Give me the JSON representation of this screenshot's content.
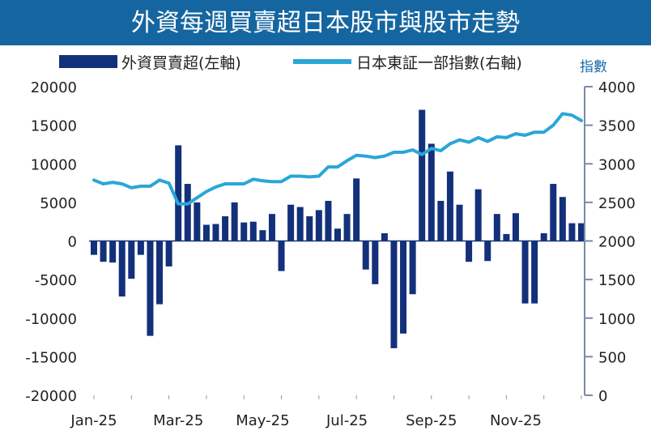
{
  "colors": {
    "title_bg": "#1566a0",
    "title_text": "#ffffff",
    "bar": "#13307a",
    "line": "#2aa6d8",
    "axis_text": "#222222",
    "right_axis_text": "#1a6aa8",
    "right_axis_line": "#7a8aa8"
  },
  "chart_data": {
    "type": "bar+line",
    "title": "外資每週買賣超日本股市與股市走勢",
    "legend": {
      "bar_label": "外資買賣超(左軸)",
      "line_label": "日本東証一部指數(右軸)",
      "position": "top"
    },
    "right_axis_title": "指數",
    "left_axis": {
      "ylim": [
        -20000,
        20000
      ],
      "ticks": [
        "20000",
        "15000",
        "10000",
        "5000",
        "0",
        "-5000",
        "-10000",
        "-15000",
        "-20000"
      ]
    },
    "right_axis": {
      "ylim": [
        0,
        4000
      ],
      "ticks": [
        "4000",
        "3500",
        "3000",
        "2500",
        "2000",
        "1500",
        "1000",
        "500",
        "0"
      ]
    },
    "x_labels": [
      "Jan-25",
      "Mar-25",
      "May-25",
      "Jul-25",
      "Sep-25",
      "Nov-25"
    ],
    "x_label_week_index": [
      0,
      9,
      18,
      27,
      36,
      45
    ],
    "series": [
      {
        "name": "外資買賣超(左軸)",
        "type": "bar",
        "axis": "left",
        "values": [
          -1800,
          -2700,
          -2800,
          -7200,
          -4900,
          -1800,
          -12300,
          -8200,
          -3300,
          12400,
          7400,
          5000,
          2100,
          2200,
          3200,
          5000,
          2400,
          2500,
          1400,
          3500,
          -3900,
          4700,
          4400,
          3200,
          4000,
          5200,
          1600,
          3500,
          8100,
          -3700,
          -5600,
          1000,
          -13900,
          -12000,
          -6900,
          17000,
          12600,
          5200,
          9000,
          4700,
          -2700,
          6700,
          -2600,
          3500,
          900,
          3600,
          -8100,
          -8100,
          1000,
          7400,
          5700,
          2300,
          2300
        ]
      },
      {
        "name": "日本東証一部指數(右軸)",
        "type": "line",
        "axis": "right",
        "values": [
          2790,
          2740,
          2760,
          2740,
          2690,
          2710,
          2710,
          2790,
          2750,
          2480,
          2480,
          2560,
          2640,
          2700,
          2740,
          2740,
          2740,
          2800,
          2780,
          2770,
          2770,
          2840,
          2840,
          2830,
          2840,
          2960,
          2960,
          3040,
          3110,
          3100,
          3080,
          3100,
          3150,
          3150,
          3180,
          3120,
          3200,
          3170,
          3260,
          3310,
          3280,
          3340,
          3290,
          3350,
          3340,
          3390,
          3370,
          3410,
          3410,
          3500,
          3650,
          3630,
          3560
        ]
      }
    ]
  }
}
